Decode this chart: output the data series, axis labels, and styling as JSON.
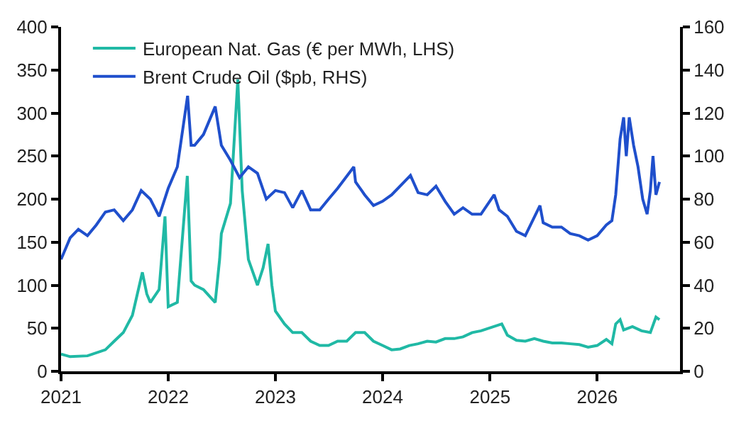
{
  "chart_data": {
    "type": "line",
    "series": [
      {
        "name": "European Nat. Gas (€ per MWh, LHS)",
        "color": "#20b9a5",
        "axis": "y",
        "x": [
          "2021-01-01",
          "2021-02-01",
          "2021-04-01",
          "2021-06-01",
          "2021-07-01",
          "2021-08-01",
          "2021-09-01",
          "2021-10-05",
          "2021-10-20",
          "2021-11-01",
          "2021-12-01",
          "2021-12-21",
          "2022-01-01",
          "2022-02-01",
          "2022-03-07",
          "2022-03-20",
          "2022-04-01",
          "2022-05-01",
          "2022-06-10",
          "2022-06-25",
          "2022-07-01",
          "2022-08-01",
          "2022-08-26",
          "2022-09-10",
          "2022-10-01",
          "2022-11-01",
          "2022-11-20",
          "2022-12-07",
          "2022-12-20",
          "2023-01-01",
          "2023-02-01",
          "2023-03-01",
          "2023-04-01",
          "2023-05-01",
          "2023-06-01",
          "2023-07-01",
          "2023-08-01",
          "2023-09-01",
          "2023-10-01",
          "2023-11-01",
          "2023-12-01",
          "2024-01-01",
          "2024-02-01",
          "2024-03-01",
          "2024-04-01",
          "2024-05-01",
          "2024-06-01",
          "2024-07-01",
          "2024-08-01",
          "2024-09-01",
          "2024-10-01",
          "2024-11-01",
          "2024-12-01",
          "2025-02-10",
          "2025-03-01",
          "2025-04-01",
          "2025-05-01",
          "2025-06-01",
          "2025-07-01",
          "2025-08-01",
          "2025-09-01",
          "2025-10-01",
          "2025-11-01",
          "2025-12-01",
          "2026-01-01",
          "2026-02-01",
          "2026-02-20",
          "2026-03-05",
          "2026-03-20",
          "2026-04-01",
          "2026-05-01",
          "2026-06-01",
          "2026-07-01",
          "2026-07-20",
          "2026-08-01"
        ],
        "values": [
          20,
          17,
          18,
          25,
          35,
          45,
          65,
          115,
          90,
          80,
          95,
          180,
          75,
          80,
          227,
          105,
          100,
          95,
          80,
          130,
          160,
          195,
          339,
          210,
          130,
          100,
          120,
          148,
          100,
          70,
          55,
          45,
          45,
          35,
          30,
          30,
          35,
          35,
          45,
          45,
          35,
          30,
          25,
          26,
          30,
          32,
          35,
          34,
          38,
          38,
          40,
          45,
          47,
          55,
          42,
          36,
          35,
          38,
          35,
          33,
          33,
          32,
          31,
          28,
          30,
          37,
          32,
          55,
          60,
          48,
          52,
          47,
          45,
          63,
          60
        ]
      },
      {
        "name": "Brent Crude Oil ($pb, RHS)",
        "color": "#1f4fcc",
        "axis": "y2",
        "x": [
          "2021-01-01",
          "2021-02-01",
          "2021-03-01",
          "2021-04-01",
          "2021-05-01",
          "2021-06-01",
          "2021-07-01",
          "2021-08-01",
          "2021-09-01",
          "2021-10-01",
          "2021-11-01",
          "2021-12-01",
          "2022-01-01",
          "2022-02-01",
          "2022-03-08",
          "2022-03-20",
          "2022-04-01",
          "2022-05-01",
          "2022-06-10",
          "2022-07-01",
          "2022-08-01",
          "2022-09-01",
          "2022-10-01",
          "2022-11-01",
          "2022-12-01",
          "2023-01-01",
          "2023-02-01",
          "2023-03-01",
          "2023-04-01",
          "2023-05-01",
          "2023-06-01",
          "2023-07-01",
          "2023-08-01",
          "2023-09-25",
          "2023-10-01",
          "2023-11-01",
          "2023-12-01",
          "2024-01-01",
          "2024-02-01",
          "2024-04-05",
          "2024-05-01",
          "2024-06-01",
          "2024-07-01",
          "2024-08-01",
          "2024-09-01",
          "2024-10-01",
          "2024-11-01",
          "2024-12-01",
          "2025-01-15",
          "2025-02-01",
          "2025-03-01",
          "2025-04-01",
          "2025-05-01",
          "2025-06-20",
          "2025-07-01",
          "2025-08-01",
          "2025-09-01",
          "2025-10-01",
          "2025-11-01",
          "2025-12-01",
          "2026-01-01",
          "2026-02-01",
          "2026-02-20",
          "2026-03-05",
          "2026-03-20",
          "2026-04-01",
          "2026-04-10",
          "2026-04-20",
          "2026-05-05",
          "2026-05-20",
          "2026-06-05",
          "2026-06-20",
          "2026-07-01",
          "2026-07-10",
          "2026-07-20",
          "2026-08-01"
        ],
        "values": [
          52,
          62,
          66,
          63,
          68,
          74,
          75,
          70,
          75,
          84,
          80,
          72,
          85,
          95,
          128,
          105,
          105,
          110,
          123,
          105,
          98,
          90,
          95,
          92,
          80,
          84,
          83,
          76,
          84,
          75,
          75,
          80,
          85,
          95,
          88,
          82,
          77,
          79,
          82,
          91,
          83,
          82,
          86,
          79,
          73,
          76,
          73,
          73,
          82,
          75,
          72,
          65,
          63,
          77,
          69,
          67,
          67,
          64,
          63,
          61,
          63,
          68,
          70,
          82,
          108,
          118,
          100,
          118,
          105,
          95,
          80,
          73,
          84,
          100,
          82,
          88
        ]
      }
    ],
    "xlim": [
      "2021-01-01",
      "2026-10-10"
    ],
    "xticks": [
      {
        "value": "2021-01-01",
        "label": "2021"
      },
      {
        "value": "2022-01-01",
        "label": "2022"
      },
      {
        "value": "2023-01-01",
        "label": "2023"
      },
      {
        "value": "2024-01-01",
        "label": "2024"
      },
      {
        "value": "2025-01-01",
        "label": "2025"
      },
      {
        "value": "2026-01-01",
        "label": "2026"
      }
    ],
    "ylim": [
      0,
      400
    ],
    "yticks": [
      0,
      50,
      100,
      150,
      200,
      250,
      300,
      350,
      400
    ],
    "y2lim": [
      0,
      160
    ],
    "y2ticks": [
      0,
      20,
      40,
      60,
      80,
      100,
      120,
      140,
      160
    ],
    "legend": "top left",
    "marker": "none",
    "line_style": "solid"
  }
}
